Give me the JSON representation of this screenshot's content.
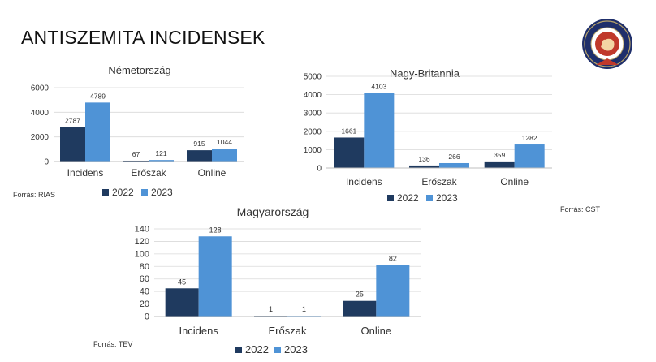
{
  "title": "ANTISZEMITA INCIDENSEK",
  "colors": {
    "series_2022": "#1f3a5f",
    "series_2023": "#4f93d6"
  },
  "chart_data": [
    {
      "type": "bar",
      "title": "Németország",
      "categories": [
        "Incidens",
        "Erőszak",
        "Online"
      ],
      "series": [
        {
          "name": "2022",
          "values": [
            2787,
            67,
            915
          ]
        },
        {
          "name": "2023",
          "values": [
            4789,
            121,
            1044
          ]
        }
      ],
      "ylim": [
        0,
        6000
      ],
      "yticks": [
        0,
        2000,
        4000,
        6000
      ],
      "legend": "bottom",
      "source": "Forrás: RIAS"
    },
    {
      "type": "bar",
      "title": "Nagy-Britannia",
      "categories": [
        "Incidens",
        "Erőszak",
        "Online"
      ],
      "series": [
        {
          "name": "2022",
          "values": [
            1661,
            136,
            359
          ]
        },
        {
          "name": "2023",
          "values": [
            4103,
            266,
            1282
          ]
        }
      ],
      "ylim": [
        0,
        5000
      ],
      "yticks": [
        0,
        1000,
        2000,
        3000,
        4000,
        5000
      ],
      "legend": "bottom",
      "source": "Forrás: CST"
    },
    {
      "type": "bar",
      "title": "Magyarország",
      "categories": [
        "Incidens",
        "Erőszak",
        "Online"
      ],
      "series": [
        {
          "name": "2022",
          "values": [
            45,
            1,
            25
          ]
        },
        {
          "name": "2023",
          "values": [
            128,
            1,
            82
          ]
        }
      ],
      "ylim": [
        0,
        140
      ],
      "yticks": [
        0,
        20,
        40,
        60,
        80,
        100,
        120,
        140
      ],
      "legend": "bottom",
      "source": "Forrás: TEV"
    }
  ]
}
